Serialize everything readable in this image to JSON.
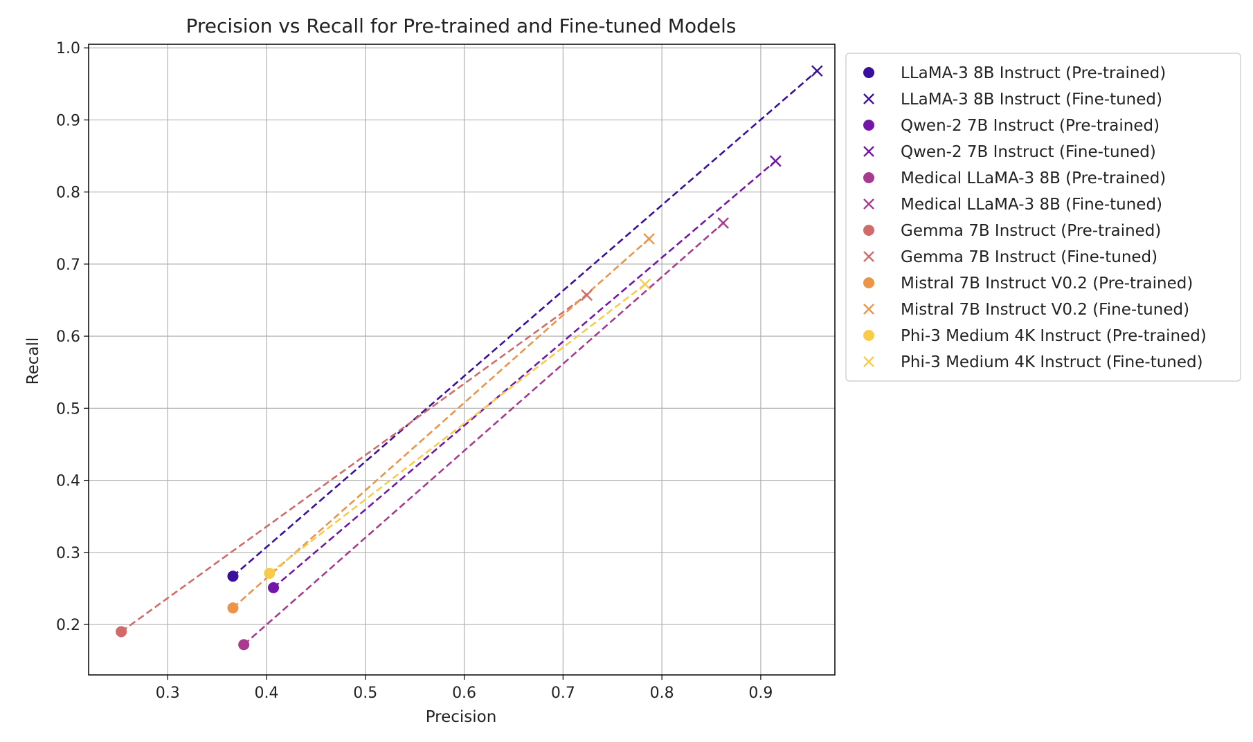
{
  "chart_data": {
    "type": "scatter",
    "title": "Precision vs Recall for Pre-trained and Fine-tuned Models",
    "xlabel": "Precision",
    "ylabel": "Recall",
    "xlim": [
      0.22,
      0.975
    ],
    "ylim": [
      0.13,
      1.005
    ],
    "xticks": [
      0.3,
      0.4,
      0.5,
      0.6,
      0.7,
      0.8,
      0.9
    ],
    "xtick_labels": [
      "0.3",
      "0.4",
      "0.5",
      "0.6",
      "0.7",
      "0.8",
      "0.9"
    ],
    "yticks": [
      0.2,
      0.3,
      0.4,
      0.5,
      0.6,
      0.7,
      0.8,
      0.9,
      1.0
    ],
    "ytick_labels": [
      "0.2",
      "0.3",
      "0.4",
      "0.5",
      "0.6",
      "0.7",
      "0.8",
      "0.9",
      "1.0"
    ],
    "grid": true,
    "legend_position": "outside-right-top",
    "line_style": "dashed line connects pre-trained to fine-tuned point of each model",
    "models": [
      {
        "color": "#3b0f9e",
        "pretrained": {
          "name": "LLaMA-3 8B Instruct (Pre-trained)",
          "precision": 0.366,
          "recall": 0.267
        },
        "finetuned": {
          "name": "LLaMA-3 8B Instruct (Fine-tuned)",
          "precision": 0.957,
          "recall": 0.968
        }
      },
      {
        "color": "#7416a8",
        "pretrained": {
          "name": "Qwen-2 7B Instruct (Pre-trained)",
          "precision": 0.407,
          "recall": 0.251
        },
        "finetuned": {
          "name": "Qwen-2 7B Instruct (Fine-tuned)",
          "precision": 0.915,
          "recall": 0.843
        }
      },
      {
        "color": "#a83b8f",
        "pretrained": {
          "name": "Medical LLaMA-3 8B (Pre-trained)",
          "precision": 0.377,
          "recall": 0.172
        },
        "finetuned": {
          "name": "Medical LLaMA-3 8B (Fine-tuned)",
          "precision": 0.862,
          "recall": 0.757
        }
      },
      {
        "color": "#d26a6a",
        "pretrained": {
          "name": "Gemma 7B Instruct (Pre-trained)",
          "precision": 0.253,
          "recall": 0.19
        },
        "finetuned": {
          "name": "Gemma 7B Instruct (Fine-tuned)",
          "precision": 0.724,
          "recall": 0.657
        }
      },
      {
        "color": "#ec9448",
        "pretrained": {
          "name": "Mistral 7B Instruct V0.2 (Pre-trained)",
          "precision": 0.366,
          "recall": 0.223
        },
        "finetuned": {
          "name": "Mistral 7B Instruct V0.2 (Fine-tuned)",
          "precision": 0.787,
          "recall": 0.735
        }
      },
      {
        "color": "#f8cc4a",
        "pretrained": {
          "name": "Phi-3 Medium 4K Instruct (Pre-trained)",
          "precision": 0.403,
          "recall": 0.271
        },
        "finetuned": {
          "name": "Phi-3 Medium 4K Instruct (Fine-tuned)",
          "precision": 0.783,
          "recall": 0.672
        }
      }
    ]
  }
}
